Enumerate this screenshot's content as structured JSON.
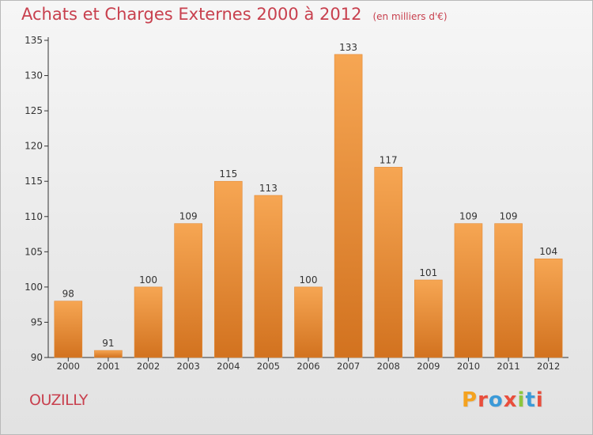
{
  "header": {
    "title": "Achats et Charges Externes 2000 à 2012",
    "subtitle": "(en milliers d'€)"
  },
  "footer": {
    "city": "OUZILLY",
    "logo_text": "Proxiti",
    "logo_colors": [
      "#f4a21f",
      "#e94e3c",
      "#3b9ad8",
      "#e94e3c",
      "#8cc63e",
      "#3b9ad8",
      "#e94e3c"
    ]
  },
  "colors": {
    "bar_light": "#f6a653",
    "bar_dark": "#d2721f",
    "text_red": "#c8404e",
    "axis": "#333333"
  },
  "chart_data": {
    "type": "bar",
    "title": "Achats et Charges Externes 2000 à 2012",
    "subtitle": "(en milliers d'€)",
    "xlabel": "",
    "ylabel": "",
    "categories": [
      "2000",
      "2001",
      "2002",
      "2003",
      "2004",
      "2005",
      "2006",
      "2007",
      "2008",
      "2009",
      "2010",
      "2011",
      "2012"
    ],
    "values": [
      98,
      91,
      100,
      109,
      115,
      113,
      100,
      133,
      117,
      101,
      109,
      109,
      104
    ],
    "value_labels": [
      "98",
      "91",
      "100",
      "109",
      "115",
      "113",
      "100",
      "133",
      "117",
      "101",
      "109",
      "109",
      "104"
    ],
    "ylim": [
      90,
      135
    ],
    "yticks": [
      "90",
      "95",
      "100",
      "105",
      "110",
      "115",
      "120",
      "125",
      "130",
      "135"
    ],
    "grid": false,
    "legend": "none"
  }
}
